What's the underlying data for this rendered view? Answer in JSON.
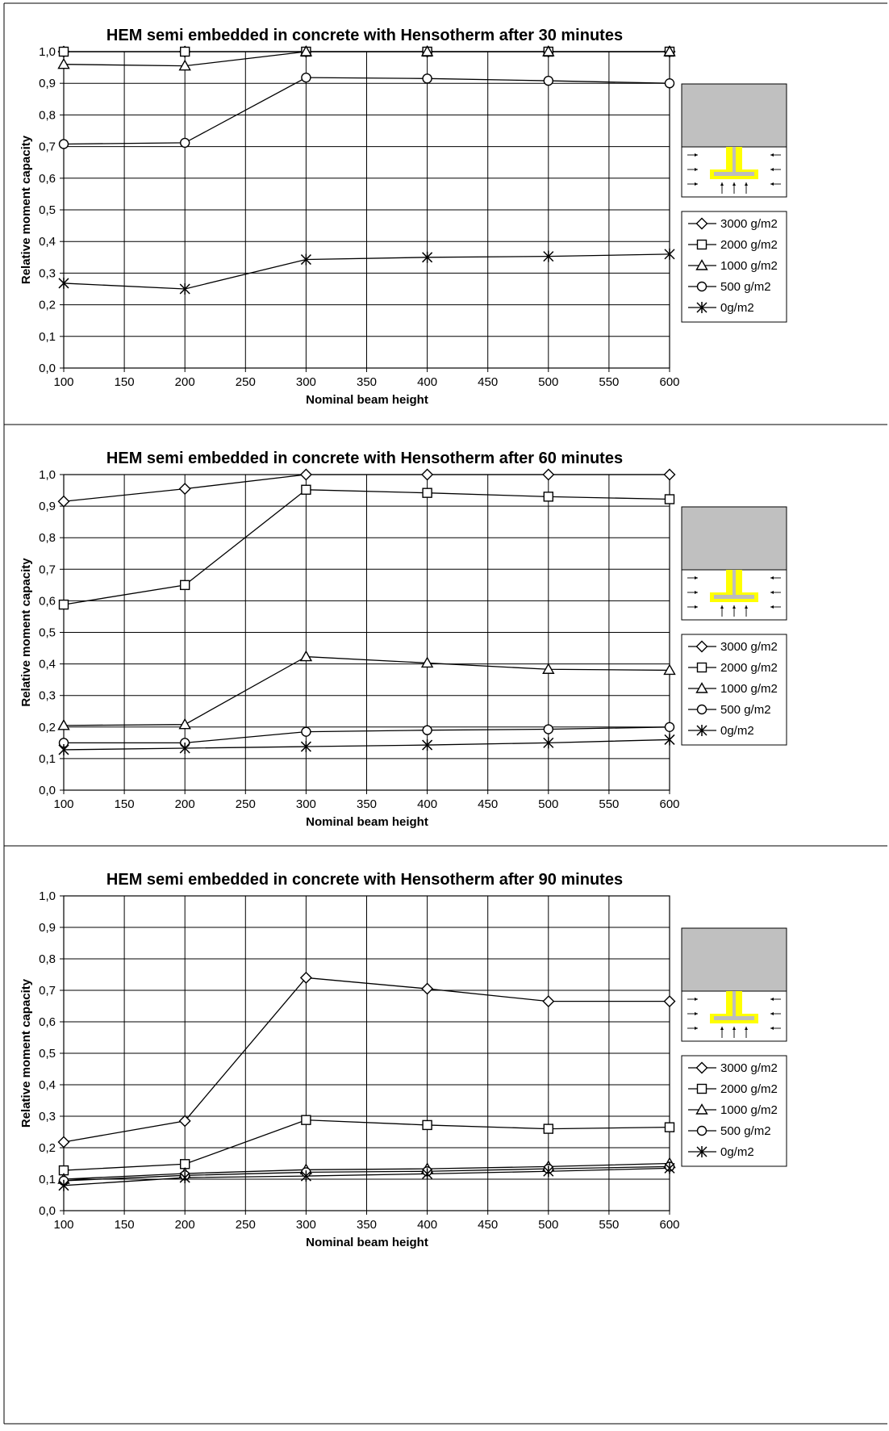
{
  "chart_data": [
    {
      "type": "line",
      "title": "HEM semi embedded in concrete with Hensotherm after 30 minutes",
      "xlabel": "Nominal beam height",
      "ylabel": "Relative moment capacity",
      "xlim": [
        100,
        600
      ],
      "ylim": [
        0,
        1
      ],
      "x_ticks": [
        "100",
        "150",
        "200",
        "250",
        "300",
        "350",
        "400",
        "450",
        "500",
        "550",
        "600"
      ],
      "y_ticks": [
        "0,0",
        "0,1",
        "0,2",
        "0,3",
        "0,4",
        "0,5",
        "0,6",
        "0,7",
        "0,8",
        "0,9",
        "1,0"
      ],
      "grid": true,
      "legend_position": "right",
      "x": [
        100,
        200,
        300,
        400,
        500,
        600
      ],
      "series": [
        {
          "name": "3000 g/m2",
          "marker": "diamond",
          "values": [
            1.0,
            1.0,
            1.0,
            1.0,
            1.0,
            1.0
          ]
        },
        {
          "name": "2000 g/m2",
          "marker": "square",
          "values": [
            1.0,
            1.0,
            1.0,
            1.0,
            1.0,
            1.0
          ]
        },
        {
          "name": "1000 g/m2",
          "marker": "triangle",
          "values": [
            0.96,
            0.955,
            1.0,
            1.0,
            1.0,
            1.0
          ]
        },
        {
          "name": "500 g/m2",
          "marker": "circle",
          "values": [
            0.708,
            0.712,
            0.918,
            0.915,
            0.908,
            0.9
          ]
        },
        {
          "name": "0g/m2",
          "marker": "star",
          "values": [
            0.268,
            0.25,
            0.343,
            0.35,
            0.353,
            0.36
          ]
        }
      ]
    },
    {
      "type": "line",
      "title": "HEM semi embedded in concrete with Hensotherm after 60 minutes",
      "xlabel": "Nominal beam height",
      "ylabel": "Relative moment capacity",
      "xlim": [
        100,
        600
      ],
      "ylim": [
        0,
        1
      ],
      "x_ticks": [
        "100",
        "150",
        "200",
        "250",
        "300",
        "350",
        "400",
        "450",
        "500",
        "550",
        "600"
      ],
      "y_ticks": [
        "0,0",
        "0,1",
        "0,2",
        "0,3",
        "0,4",
        "0,5",
        "0,6",
        "0,7",
        "0,8",
        "0,9",
        "1,0"
      ],
      "grid": true,
      "legend_position": "right",
      "x": [
        100,
        200,
        300,
        400,
        500,
        600
      ],
      "series": [
        {
          "name": "3000 g/m2",
          "marker": "diamond",
          "values": [
            0.915,
            0.955,
            1.0,
            1.0,
            1.0,
            1.0
          ]
        },
        {
          "name": "2000 g/m2",
          "marker": "square",
          "values": [
            0.588,
            0.65,
            0.952,
            0.942,
            0.93,
            0.922
          ]
        },
        {
          "name": "1000 g/m2",
          "marker": "triangle",
          "values": [
            0.205,
            0.208,
            0.423,
            0.403,
            0.383,
            0.38
          ]
        },
        {
          "name": "500 g/m2",
          "marker": "circle",
          "values": [
            0.15,
            0.15,
            0.185,
            0.19,
            0.193,
            0.2
          ]
        },
        {
          "name": "0g/m2",
          "marker": "star",
          "values": [
            0.128,
            0.133,
            0.138,
            0.143,
            0.15,
            0.16
          ]
        }
      ]
    },
    {
      "type": "line",
      "title": "HEM semi embedded in concrete with Hensotherm after 90 minutes",
      "xlabel": "Nominal beam height",
      "ylabel": "Relative moment capacity",
      "xlim": [
        100,
        600
      ],
      "ylim": [
        0,
        1
      ],
      "x_ticks": [
        "100",
        "150",
        "200",
        "250",
        "300",
        "350",
        "400",
        "450",
        "500",
        "550",
        "600"
      ],
      "y_ticks": [
        "0,0",
        "0,1",
        "0,2",
        "0,3",
        "0,4",
        "0,5",
        "0,6",
        "0,7",
        "0,8",
        "0,9",
        "1,0"
      ],
      "grid": true,
      "legend_position": "right",
      "x": [
        100,
        200,
        300,
        400,
        500,
        600
      ],
      "series": [
        {
          "name": "3000 g/m2",
          "marker": "diamond",
          "values": [
            0.218,
            0.285,
            0.74,
            0.705,
            0.665,
            0.665
          ]
        },
        {
          "name": "2000 g/m2",
          "marker": "square",
          "values": [
            0.128,
            0.148,
            0.288,
            0.272,
            0.26,
            0.265
          ]
        },
        {
          "name": "1000 g/m2",
          "marker": "triangle",
          "values": [
            0.1,
            0.118,
            0.13,
            0.133,
            0.14,
            0.15
          ]
        },
        {
          "name": "500 g/m2",
          "marker": "circle",
          "values": [
            0.095,
            0.112,
            0.122,
            0.125,
            0.133,
            0.14
          ]
        },
        {
          "name": "0g/m2",
          "marker": "star",
          "values": [
            0.08,
            0.105,
            0.11,
            0.117,
            0.125,
            0.135
          ]
        }
      ]
    }
  ]
}
